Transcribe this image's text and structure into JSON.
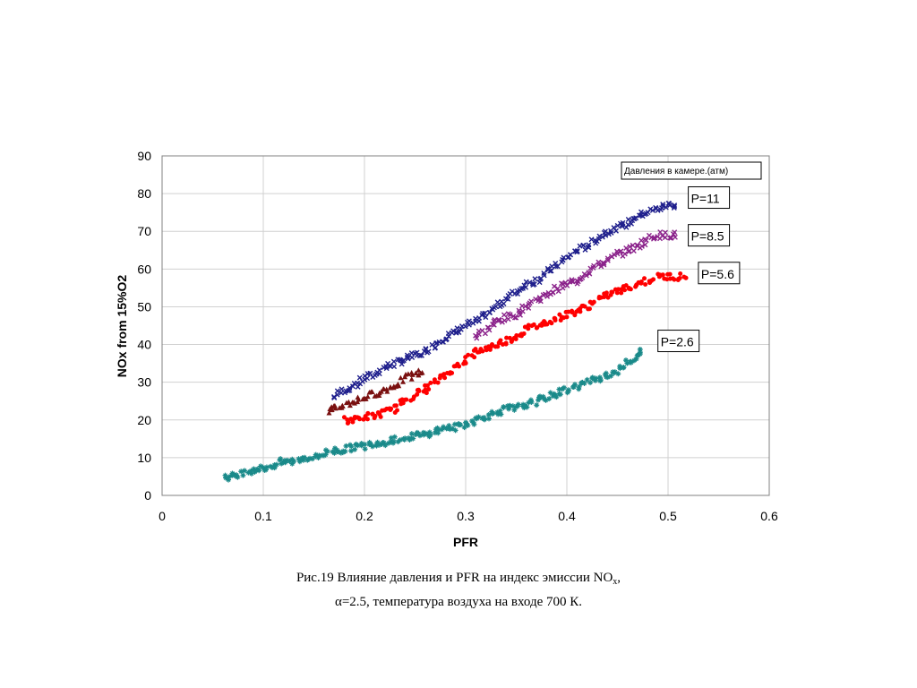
{
  "chart_data": {
    "type": "scatter",
    "xlabel": "PFR",
    "ylabel": "NOx from 15%O2",
    "xlim": [
      0,
      0.6
    ],
    "ylim": [
      0,
      90
    ],
    "x_ticks": [
      "0",
      "0.1",
      "0.2",
      "0.3",
      "0.4",
      "0.5",
      "0.6"
    ],
    "y_ticks": [
      "0",
      "10",
      "20",
      "30",
      "40",
      "50",
      "60",
      "70",
      "80",
      "90"
    ],
    "grid": true,
    "legend_title": "Давления в камере.(атм)",
    "series": [
      {
        "name": "P=11",
        "color": "#1f1f8c",
        "marker": "x",
        "points": [
          [
            0.17,
            26
          ],
          [
            0.18,
            28
          ],
          [
            0.19,
            29
          ],
          [
            0.2,
            31
          ],
          [
            0.21,
            32
          ],
          [
            0.22,
            34
          ],
          [
            0.23,
            35
          ],
          [
            0.24,
            36
          ],
          [
            0.25,
            37
          ],
          [
            0.26,
            38
          ],
          [
            0.27,
            40
          ],
          [
            0.28,
            42
          ],
          [
            0.29,
            43
          ],
          [
            0.3,
            45
          ],
          [
            0.31,
            46
          ],
          [
            0.32,
            48
          ],
          [
            0.33,
            50
          ],
          [
            0.34,
            52
          ],
          [
            0.35,
            54
          ],
          [
            0.36,
            56
          ],
          [
            0.37,
            57
          ],
          [
            0.38,
            59
          ],
          [
            0.39,
            61
          ],
          [
            0.4,
            63
          ],
          [
            0.41,
            65
          ],
          [
            0.42,
            66
          ],
          [
            0.43,
            68
          ],
          [
            0.44,
            70
          ],
          [
            0.45,
            71
          ],
          [
            0.46,
            72
          ],
          [
            0.47,
            74
          ],
          [
            0.48,
            75
          ],
          [
            0.49,
            76
          ],
          [
            0.5,
            77
          ],
          [
            0.51,
            77
          ]
        ]
      },
      {
        "name": "P=8.5",
        "color": "#8b238b",
        "marker": "x",
        "points": [
          [
            0.31,
            42
          ],
          [
            0.32,
            44
          ],
          [
            0.33,
            46
          ],
          [
            0.34,
            47
          ],
          [
            0.35,
            48
          ],
          [
            0.36,
            50
          ],
          [
            0.37,
            52
          ],
          [
            0.38,
            53
          ],
          [
            0.39,
            55
          ],
          [
            0.4,
            56
          ],
          [
            0.41,
            57
          ],
          [
            0.42,
            59
          ],
          [
            0.43,
            61
          ],
          [
            0.44,
            62
          ],
          [
            0.45,
            64
          ],
          [
            0.46,
            65
          ],
          [
            0.47,
            66
          ],
          [
            0.48,
            68
          ],
          [
            0.49,
            69
          ],
          [
            0.5,
            69
          ],
          [
            0.51,
            69
          ]
        ]
      },
      {
        "name": "",
        "color": "#7a1010",
        "marker": "triangle",
        "points": [
          [
            0.165,
            22
          ],
          [
            0.17,
            23
          ],
          [
            0.18,
            24
          ],
          [
            0.19,
            25
          ],
          [
            0.2,
            26
          ],
          [
            0.21,
            27
          ],
          [
            0.22,
            28
          ],
          [
            0.23,
            29
          ],
          [
            0.24,
            31
          ],
          [
            0.25,
            32
          ],
          [
            0.26,
            33
          ]
        ]
      },
      {
        "name": "P=5.6",
        "color": "#ff0000",
        "marker": "circle",
        "points": [
          [
            0.18,
            20
          ],
          [
            0.19,
            20
          ],
          [
            0.2,
            21
          ],
          [
            0.21,
            21
          ],
          [
            0.22,
            22
          ],
          [
            0.23,
            23
          ],
          [
            0.24,
            25
          ],
          [
            0.25,
            27
          ],
          [
            0.26,
            28
          ],
          [
            0.27,
            30
          ],
          [
            0.28,
            32
          ],
          [
            0.29,
            34
          ],
          [
            0.3,
            36
          ],
          [
            0.31,
            38
          ],
          [
            0.32,
            39
          ],
          [
            0.33,
            40
          ],
          [
            0.34,
            41
          ],
          [
            0.35,
            42
          ],
          [
            0.36,
            44
          ],
          [
            0.37,
            45
          ],
          [
            0.38,
            46
          ],
          [
            0.39,
            47
          ],
          [
            0.4,
            48
          ],
          [
            0.41,
            49
          ],
          [
            0.42,
            50
          ],
          [
            0.43,
            52
          ],
          [
            0.44,
            53
          ],
          [
            0.45,
            54
          ],
          [
            0.46,
            55
          ],
          [
            0.47,
            56
          ],
          [
            0.48,
            57
          ],
          [
            0.49,
            58
          ],
          [
            0.5,
            58
          ],
          [
            0.51,
            58
          ],
          [
            0.52,
            58
          ]
        ]
      },
      {
        "name": "P=2.6",
        "color": "#1a8a8a",
        "marker": "star",
        "points": [
          [
            0.063,
            5
          ],
          [
            0.07,
            5
          ],
          [
            0.08,
            6
          ],
          [
            0.09,
            7
          ],
          [
            0.1,
            7
          ],
          [
            0.11,
            8
          ],
          [
            0.12,
            9
          ],
          [
            0.13,
            9
          ],
          [
            0.14,
            10
          ],
          [
            0.15,
            10
          ],
          [
            0.16,
            11
          ],
          [
            0.17,
            12
          ],
          [
            0.18,
            12
          ],
          [
            0.19,
            13
          ],
          [
            0.2,
            13
          ],
          [
            0.21,
            14
          ],
          [
            0.22,
            14
          ],
          [
            0.23,
            15
          ],
          [
            0.24,
            15
          ],
          [
            0.25,
            16
          ],
          [
            0.26,
            16
          ],
          [
            0.27,
            17
          ],
          [
            0.28,
            18
          ],
          [
            0.29,
            18
          ],
          [
            0.3,
            19
          ],
          [
            0.31,
            20
          ],
          [
            0.32,
            21
          ],
          [
            0.33,
            22
          ],
          [
            0.34,
            23
          ],
          [
            0.35,
            23
          ],
          [
            0.36,
            24
          ],
          [
            0.37,
            25
          ],
          [
            0.38,
            26
          ],
          [
            0.39,
            27
          ],
          [
            0.4,
            28
          ],
          [
            0.41,
            29
          ],
          [
            0.42,
            30
          ],
          [
            0.43,
            31
          ],
          [
            0.44,
            32
          ],
          [
            0.45,
            33
          ],
          [
            0.46,
            35
          ],
          [
            0.47,
            37
          ],
          [
            0.475,
            39
          ]
        ]
      }
    ],
    "labels": [
      {
        "text": "P=11",
        "x": 0.52,
        "y": 78
      },
      {
        "text": "P=8.5",
        "x": 0.52,
        "y": 68
      },
      {
        "text": "P=5.6",
        "x": 0.53,
        "y": 58
      },
      {
        "text": "P=2.6",
        "x": 0.49,
        "y": 40
      }
    ]
  },
  "caption": {
    "line1_prefix": "Рис.19     Влияние давления и PFR  на индекс эмиссии NO",
    "line1_sub": "x",
    "line1_suffix": ",",
    "line2": "α=2.5, температура воздуха на входе 700 К."
  }
}
